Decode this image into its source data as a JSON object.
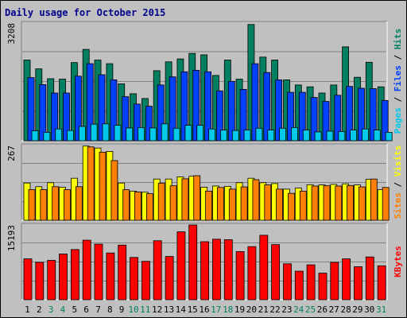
{
  "title": "Daily usage for October 2015",
  "colors": {
    "pages": "#00c8e8",
    "files": "#0040ff",
    "hits": "#008060",
    "sites": "#ff8000",
    "visits": "#ffff00",
    "kbytes": "#ff0000",
    "weekday_label": "#000000",
    "weekend_label": "#008060",
    "panel_bg": "#c0c0c0"
  },
  "chart_data": [
    {
      "type": "bar",
      "panel": "hits-files-pages",
      "ymax_label": "3208",
      "ymax": 3208,
      "side_labels": [
        "Pages",
        "Files",
        "Hits"
      ],
      "categories": [
        "1",
        "2",
        "3",
        "4",
        "5",
        "6",
        "7",
        "8",
        "9",
        "10",
        "11",
        "12",
        "13",
        "14",
        "15",
        "16",
        "17",
        "18",
        "19",
        "20",
        "21",
        "22",
        "23",
        "24",
        "25",
        "26",
        "27",
        "28",
        "29",
        "30",
        "31"
      ],
      "series": [
        {
          "name": "Hits",
          "values": [
            2200,
            1960,
            1690,
            1680,
            2130,
            2490,
            2200,
            2100,
            1550,
            1280,
            1150,
            1910,
            2150,
            2230,
            2380,
            2340,
            1780,
            2200,
            1680,
            3170,
            2280,
            2200,
            1660,
            1520,
            1470,
            1300,
            1520,
            2560,
            1730,
            2140,
            1470
          ]
        },
        {
          "name": "Files",
          "values": [
            1720,
            1530,
            1300,
            1300,
            1760,
            2100,
            1800,
            1660,
            1200,
            1000,
            940,
            1520,
            1740,
            1880,
            1920,
            1880,
            1360,
            1620,
            1400,
            2100,
            1860,
            1660,
            1320,
            1320,
            1180,
            1070,
            1240,
            1480,
            1430,
            1420,
            1100
          ]
        },
        {
          "name": "Pages",
          "values": [
            270,
            230,
            320,
            280,
            390,
            450,
            460,
            420,
            350,
            360,
            350,
            460,
            340,
            420,
            420,
            320,
            290,
            280,
            290,
            340,
            290,
            340,
            360,
            290,
            240,
            260,
            250,
            290,
            320,
            290,
            230
          ]
        }
      ]
    },
    {
      "type": "bar",
      "panel": "visits-sites",
      "ymax_label": "267",
      "ymax": 267,
      "side_labels": [
        "Sites",
        "Visits"
      ],
      "categories": [
        "1",
        "2",
        "3",
        "4",
        "5",
        "6",
        "7",
        "8",
        "9",
        "10",
        "11",
        "12",
        "13",
        "14",
        "15",
        "16",
        "17",
        "18",
        "19",
        "20",
        "21",
        "22",
        "23",
        "24",
        "25",
        "26",
        "27",
        "28",
        "29",
        "30",
        "31"
      ],
      "series": [
        {
          "name": "Visits",
          "values": [
            133,
            120,
            134,
            118,
            150,
            265,
            258,
            246,
            133,
            104,
            100,
            147,
            147,
            155,
            157,
            118,
            122,
            121,
            134,
            150,
            134,
            131,
            111,
            115,
            127,
            126,
            128,
            130,
            126,
            146,
            109
          ]
        },
        {
          "name": "Sites",
          "values": [
            109,
            109,
            120,
            109,
            120,
            262,
            243,
            213,
            109,
            101,
            95,
            132,
            123,
            148,
            159,
            104,
            117,
            111,
            119,
            145,
            126,
            111,
            96,
            104,
            122,
            123,
            122,
            124,
            119,
            147,
            117
          ]
        }
      ]
    },
    {
      "type": "bar",
      "panel": "kbytes",
      "ymax_label": "15193",
      "ymax": 15193,
      "side_labels": [
        "KBytes"
      ],
      "categories": [
        "1",
        "2",
        "3",
        "4",
        "5",
        "6",
        "7",
        "8",
        "9",
        "10",
        "11",
        "12",
        "13",
        "14",
        "15",
        "16",
        "17",
        "18",
        "19",
        "20",
        "21",
        "22",
        "23",
        "24",
        "25",
        "26",
        "27",
        "28",
        "29",
        "30",
        "31"
      ],
      "series": [
        {
          "name": "KBytes",
          "values": [
            8300,
            7600,
            8000,
            9300,
            10200,
            12100,
            11300,
            9500,
            11100,
            8600,
            7800,
            12000,
            8800,
            13800,
            15193,
            11800,
            12300,
            12200,
            9800,
            10800,
            13100,
            11200,
            7300,
            5800,
            7100,
            5400,
            7600,
            8300,
            6700,
            8700,
            6900
          ]
        }
      ]
    }
  ],
  "x_axis": {
    "labels": [
      "1",
      "2",
      "3",
      "4",
      "5",
      "6",
      "7",
      "8",
      "9",
      "10",
      "11",
      "12",
      "13",
      "14",
      "15",
      "16",
      "17",
      "18",
      "19",
      "20",
      "21",
      "22",
      "23",
      "24",
      "25",
      "26",
      "27",
      "28",
      "29",
      "30",
      "31"
    ],
    "weekend": [
      false,
      false,
      true,
      true,
      false,
      false,
      false,
      false,
      false,
      true,
      true,
      false,
      false,
      false,
      false,
      false,
      true,
      true,
      false,
      false,
      false,
      false,
      false,
      true,
      true,
      false,
      false,
      false,
      false,
      false,
      true
    ]
  }
}
